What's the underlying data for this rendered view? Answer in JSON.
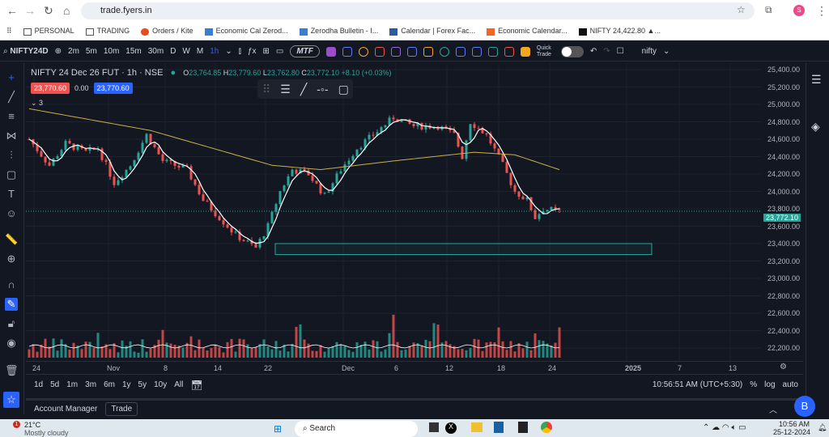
{
  "browser": {
    "url": "trade.fyers.in",
    "profile": "S"
  },
  "bookmarks": [
    "PERSONAL",
    "TRADING",
    "Orders / Kite",
    "Economic Cal Zerod...",
    "Zerodha Bulletin - I...",
    "Calendar | Forex Fac...",
    "Economic Calendar...",
    "NIFTY 24,422.80 ▲..."
  ],
  "toolbar": {
    "symbol": "NIFTY24D",
    "intervals": [
      "2m",
      "5m",
      "10m",
      "15m",
      "30m",
      "D",
      "W",
      "M",
      "1h"
    ],
    "active_interval": "1h",
    "mtf": "MTF",
    "quick_trade": "Quick Trade",
    "layout_name": "nifty"
  },
  "legend": {
    "title": "NIFTY 24 Dec 26 FUT · 1h · NSE",
    "o_label": "O",
    "o": "23,764.85",
    "h_label": "H",
    "h": "23,779.60",
    "l_label": "L",
    "l": "23,762.80",
    "c_label": "C",
    "c": "23,772.10",
    "change": "+8.10 (+0.03%)",
    "sell": "23,770.60",
    "spread": "0.00",
    "buy": "23,770.60",
    "indicators_count": "3"
  },
  "price_axis": {
    "ticks": [
      "25,400.00",
      "25,200.00",
      "25,000.00",
      "24,800.00",
      "24,600.00",
      "24,400.00",
      "24,200.00",
      "24,000.00",
      "23,800.00",
      "23,600.00",
      "23,400.00",
      "23,200.00",
      "23,000.00",
      "22,800.00",
      "22,600.00",
      "22,400.00",
      "22,200.00"
    ],
    "last_price": "23,772.10"
  },
  "time_axis": [
    "24",
    "Nov",
    "8",
    "14",
    "22",
    "Dec",
    "6",
    "12",
    "18",
    "24",
    "2025",
    "7",
    "13"
  ],
  "bottom_bar": {
    "ranges": [
      "1d",
      "5d",
      "1m",
      "3m",
      "6m",
      "1y",
      "5y",
      "10y",
      "All"
    ],
    "clock": "10:56:51 AM (UTC+5:30)",
    "pct": "%",
    "log": "log",
    "auto": "auto"
  },
  "account": {
    "manager": "Account Manager",
    "trade": "Trade",
    "avatar": "B"
  },
  "taskbar": {
    "temp": "21°C",
    "weather": "Mostly cloudy",
    "search": "Search",
    "time": "10:56 AM",
    "date": "25-12-2024",
    "badge": "1"
  },
  "colors": {
    "up": "#26a69a",
    "down": "#ef5350",
    "ma": "#c9b14a",
    "accent": "#2962ff"
  },
  "chart_data": {
    "type": "candlestick",
    "ylim": [
      22200,
      25400
    ],
    "closes_keypoints": [
      [
        0,
        24600
      ],
      [
        5,
        24300
      ],
      [
        9,
        24550
      ],
      [
        14,
        24450
      ],
      [
        17,
        24500
      ],
      [
        21,
        24100
      ],
      [
        25,
        24300
      ],
      [
        29,
        24650
      ],
      [
        33,
        24350
      ],
      [
        39,
        24250
      ],
      [
        43,
        23900
      ],
      [
        47,
        23700
      ],
      [
        51,
        23500
      ],
      [
        56,
        23350
      ],
      [
        59,
        23600
      ],
      [
        62,
        24000
      ],
      [
        65,
        24250
      ],
      [
        69,
        24200
      ],
      [
        73,
        23950
      ],
      [
        77,
        24250
      ],
      [
        81,
        24500
      ],
      [
        85,
        24650
      ],
      [
        90,
        24850
      ],
      [
        95,
        24750
      ],
      [
        101,
        24750
      ],
      [
        105,
        24650
      ],
      [
        107,
        24400
      ],
      [
        109,
        24800
      ],
      [
        113,
        24650
      ],
      [
        117,
        24300
      ],
      [
        120,
        24000
      ],
      [
        123,
        23900
      ],
      [
        125,
        23700
      ],
      [
        127,
        23800
      ],
      [
        131,
        23772
      ]
    ],
    "ma_keypoints": [
      [
        0,
        24950
      ],
      [
        30,
        24700
      ],
      [
        60,
        24300
      ],
      [
        72,
        24250
      ],
      [
        90,
        24350
      ],
      [
        110,
        24450
      ],
      [
        120,
        24420
      ],
      [
        131,
        24250
      ]
    ],
    "zone": [
      23330,
      23400
    ]
  }
}
